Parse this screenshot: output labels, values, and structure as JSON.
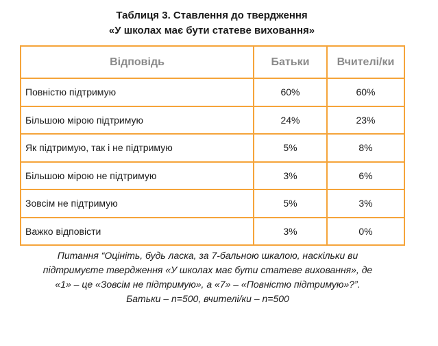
{
  "title": {
    "line1": "Таблиця 3. Ставлення до твердження",
    "line2": "«У школах має бути статеве виховання»"
  },
  "table": {
    "headers": [
      "Відповідь",
      "Батьки",
      "Вчителі/ки"
    ],
    "rows": [
      [
        "Повністю підтримую",
        "60%",
        "60%"
      ],
      [
        "Більшою мірою підтримую",
        "24%",
        "23%"
      ],
      [
        "Як підтримую, так і не підтримую",
        "5%",
        "8%"
      ],
      [
        "Більшою мірою не підтримую",
        "3%",
        "6%"
      ],
      [
        "Зовсім не підтримую",
        "5%",
        "3%"
      ],
      [
        "Важко відповісти",
        "3%",
        "0%"
      ]
    ]
  },
  "caption": {
    "line1": "Питання “Оцініть, будь ласка, за 7-бальною шкалою, наскільки ви",
    "line2": "підтримуєте твердження «У школах має бути статеве виховання», де",
    "line3": "«1» – це «Зовсім не підтримую», а «7» – «Повністю підтримую»?”.",
    "line4": "Батьки – n=500, вчителі/ки – n=500"
  },
  "colors": {
    "border": "#f5a43a",
    "header_text": "#8a8a8a"
  }
}
